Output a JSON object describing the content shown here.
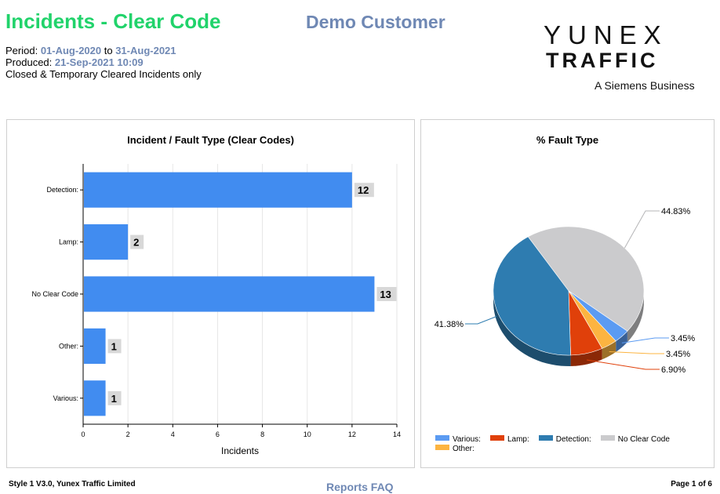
{
  "header": {
    "title": "Incidents - Clear Code",
    "customer": "Demo Customer",
    "period_label": "Period: ",
    "period_from": "01-Aug-2020",
    "period_to_label": " to ",
    "period_to": "31-Aug-2021",
    "produced_label": "Produced: ",
    "produced_value": "21-Sep-2021 10:09",
    "scope_note": "Closed & Temporary Cleared Incidents only"
  },
  "logo": {
    "line1": "YUNEX",
    "line2": "TRAFFIC",
    "line3": "A Siemens Business"
  },
  "chart_data": [
    {
      "type": "bar",
      "orientation": "horizontal",
      "title": "Incident / Fault Type (Clear Codes)",
      "xlabel": "Incidents",
      "ylabel": "",
      "categories": [
        "Detection:",
        "Lamp:",
        "No Clear Code",
        "Other:",
        "Various:"
      ],
      "values": [
        12,
        2,
        13,
        1,
        1
      ],
      "xlim": [
        0,
        14
      ],
      "xticks": [
        0,
        2,
        4,
        6,
        8,
        10,
        12,
        14
      ],
      "grid": true,
      "color": "#418cf0"
    },
    {
      "type": "pie",
      "style": "3d",
      "title": "% Fault Type",
      "slices": [
        {
          "name": "No Clear Code",
          "value": 44.83,
          "label": "44.83%",
          "color": "#cbcbcd"
        },
        {
          "name": "Various:",
          "value": 3.45,
          "label": "3.45%",
          "color": "#5b9bf2"
        },
        {
          "name": "Other:",
          "value": 3.45,
          "label": "3.45%",
          "color": "#fcb441"
        },
        {
          "name": "Lamp:",
          "value": 6.9,
          "label": "6.90%",
          "color": "#e0400a"
        },
        {
          "name": "Detection:",
          "value": 41.38,
          "label": "41.38%",
          "color": "#2e7cb0"
        }
      ],
      "legend": {
        "placement": "bottom-left",
        "entries": [
          {
            "label": "Various:",
            "color": "#5b9bf2"
          },
          {
            "label": "Lamp:",
            "color": "#e0400a"
          },
          {
            "label": "Detection:",
            "color": "#2e7cb0"
          },
          {
            "label": "No Clear Code",
            "color": "#cbcbcd"
          },
          {
            "label": "Other:",
            "color": "#fcb441"
          }
        ]
      }
    }
  ],
  "footer": {
    "left": "Style 1 V3.0, Yunex Traffic Limited",
    "mid": "Reports FAQ",
    "right": "Page 1 of 6"
  }
}
